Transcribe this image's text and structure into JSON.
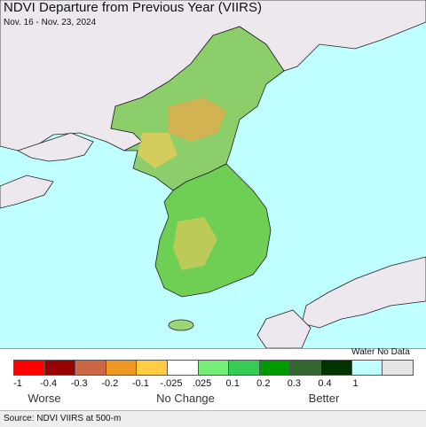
{
  "title": "NDVI Departure from Previous Year (VIIRS)",
  "subtitle": "Nov. 16 - Nov. 23, 2024",
  "colors": {
    "water": "#bfffff",
    "other_land": "#ece8ee",
    "border": "#222222"
  },
  "legend": {
    "swatches": [
      {
        "color": "#ff0000"
      },
      {
        "color": "#990000"
      },
      {
        "color": "#cc6644"
      },
      {
        "color": "#ee9922"
      },
      {
        "color": "#ffcc44"
      },
      {
        "color": "#ffffff"
      },
      {
        "color": "#77ee77"
      },
      {
        "color": "#33cc55"
      },
      {
        "color": "#009900"
      },
      {
        "color": "#336633"
      },
      {
        "color": "#003300"
      },
      {
        "color": "#bfffff"
      },
      {
        "color": "#e6e6e6"
      }
    ],
    "ticks": [
      "-1",
      "-0.4",
      "-0.3",
      "-0.2",
      "-0.1",
      "-.025",
      ".025",
      "0.1",
      "0.2",
      "0.3",
      "0.4",
      "1"
    ],
    "water_nodata_label": "Water No Data",
    "categories": [
      "Worse",
      "No Change",
      "Better"
    ]
  },
  "source": "Source: NDVI VIIRS at 500-m"
}
